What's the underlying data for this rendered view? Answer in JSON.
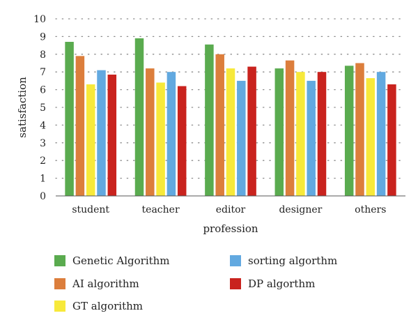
{
  "chart_data": {
    "type": "bar",
    "title": "",
    "xlabel": "profession",
    "ylabel": "satisfaction",
    "ylim": [
      0,
      10
    ],
    "yticks": [
      0,
      1,
      2,
      3,
      4,
      5,
      6,
      7,
      8,
      9,
      10
    ],
    "grid": "dotted horizontal",
    "legend_position": "bottom",
    "categories": [
      "student",
      "teacher",
      "editor",
      "designer",
      "others"
    ],
    "series": [
      {
        "name": "Genetic Algorithm",
        "color": "#5aab4f",
        "values": [
          8.7,
          8.9,
          8.55,
          7.2,
          7.35
        ]
      },
      {
        "name": "AI algorithm",
        "color": "#dc7e3c",
        "values": [
          7.9,
          7.2,
          8.0,
          7.65,
          7.5
        ]
      },
      {
        "name": "GT algorithm",
        "color": "#f7e93a",
        "values": [
          6.3,
          6.4,
          7.2,
          7.0,
          6.65
        ]
      },
      {
        "name": "sorting algorthm",
        "color": "#62a9e0",
        "values": [
          7.1,
          7.0,
          6.5,
          6.5,
          7.0
        ]
      },
      {
        "name": "DP algorthm",
        "color": "#c9231e",
        "values": [
          6.85,
          6.2,
          7.3,
          7.0,
          6.3
        ]
      }
    ]
  }
}
